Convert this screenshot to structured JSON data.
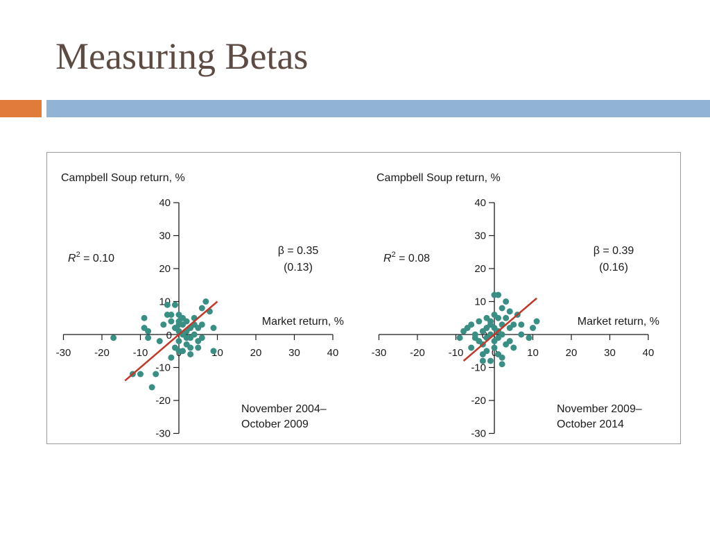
{
  "slide": {
    "title": "Measuring Betas"
  },
  "colors": {
    "title": "#5d4a42",
    "band_orange": "#e07b39",
    "band_blue": "#92b4d4",
    "points": "#3a8f85",
    "regression_line": "#c0392b",
    "axis": "#1a1a1a"
  },
  "chart_data": [
    {
      "type": "scatter",
      "ylabel": "Campbell Soup return, %",
      "xlabel": "Market return, %",
      "xlim": [
        -30,
        40
      ],
      "ylim": [
        -30,
        40
      ],
      "xticks": [
        -30,
        -20,
        -10,
        0,
        10,
        20,
        30,
        40
      ],
      "yticks": [
        -30,
        -20,
        -10,
        0,
        10,
        20,
        30,
        40
      ],
      "r2": "0.10",
      "beta": "β = 0.35",
      "beta_se": "(0.13)",
      "period": [
        "November 2004–",
        "October 2009"
      ],
      "fit_line": {
        "x": [
          -14,
          10
        ],
        "y": [
          -14,
          10
        ]
      },
      "points": [
        [
          -17,
          -1
        ],
        [
          -10,
          -12
        ],
        [
          -9,
          5
        ],
        [
          -9,
          2
        ],
        [
          -8,
          1
        ],
        [
          -7,
          -16
        ],
        [
          -6,
          -12
        ],
        [
          -5,
          -2
        ],
        [
          -4,
          3
        ],
        [
          -3,
          9
        ],
        [
          -3,
          6
        ],
        [
          -2,
          6
        ],
        [
          -2,
          4
        ],
        [
          -1,
          9
        ],
        [
          -1,
          2
        ],
        [
          -1,
          -4
        ],
        [
          0,
          6
        ],
        [
          0,
          4
        ],
        [
          0,
          3
        ],
        [
          0,
          1
        ],
        [
          0,
          -2
        ],
        [
          1,
          5
        ],
        [
          1,
          3
        ],
        [
          1,
          0
        ],
        [
          1,
          -5
        ],
        [
          2,
          4
        ],
        [
          2,
          1
        ],
        [
          2,
          -1
        ],
        [
          2,
          -3
        ],
        [
          3,
          -6
        ],
        [
          3,
          2
        ],
        [
          3,
          -1
        ],
        [
          4,
          5
        ],
        [
          4,
          3
        ],
        [
          4,
          0
        ],
        [
          5,
          2
        ],
        [
          5,
          -2
        ],
        [
          5,
          -4
        ],
        [
          6,
          3
        ],
        [
          6,
          8
        ],
        [
          7,
          10
        ],
        [
          8,
          7
        ],
        [
          9,
          2
        ],
        [
          9,
          -5
        ],
        [
          -2,
          -7
        ],
        [
          0,
          -5
        ],
        [
          -8,
          -1
        ],
        [
          -12,
          -12
        ],
        [
          3,
          -4
        ],
        [
          6,
          -1
        ]
      ]
    },
    {
      "type": "scatter",
      "ylabel": "Campbell Soup return, %",
      "xlabel": "Market return, %",
      "xlim": [
        -30,
        40
      ],
      "ylim": [
        -30,
        40
      ],
      "xticks": [
        -30,
        -20,
        -10,
        0,
        10,
        20,
        30,
        40
      ],
      "yticks": [
        -30,
        -20,
        -10,
        0,
        10,
        20,
        30,
        40
      ],
      "r2": "0.08",
      "beta": "β = 0.39",
      "beta_se": "(0.16)",
      "period": [
        "November 2009–",
        "October 2014"
      ],
      "fit_line": {
        "x": [
          -8,
          11
        ],
        "y": [
          -8,
          11
        ]
      },
      "points": [
        [
          -8,
          1
        ],
        [
          -7,
          2
        ],
        [
          -6,
          -4
        ],
        [
          -6,
          3
        ],
        [
          -5,
          0
        ],
        [
          -5,
          -1
        ],
        [
          -4,
          -2
        ],
        [
          -4,
          4
        ],
        [
          -3,
          -3
        ],
        [
          -3,
          1
        ],
        [
          -3,
          -6
        ],
        [
          -2,
          2
        ],
        [
          -2,
          -1
        ],
        [
          -2,
          -5
        ],
        [
          -2,
          5
        ],
        [
          -1,
          3
        ],
        [
          -1,
          0
        ],
        [
          -1,
          -8
        ],
        [
          -1,
          4
        ],
        [
          0,
          2
        ],
        [
          0,
          -2
        ],
        [
          0,
          12
        ],
        [
          0,
          -4
        ],
        [
          0,
          6
        ],
        [
          1,
          1
        ],
        [
          1,
          -1
        ],
        [
          1,
          5
        ],
        [
          1,
          12
        ],
        [
          1,
          -6
        ],
        [
          2,
          3
        ],
        [
          2,
          0
        ],
        [
          2,
          8
        ],
        [
          2,
          -9
        ],
        [
          2,
          -7
        ],
        [
          3,
          -3
        ],
        [
          3,
          5
        ],
        [
          3,
          10
        ],
        [
          4,
          2
        ],
        [
          4,
          -2
        ],
        [
          4,
          7
        ],
        [
          5,
          -4
        ],
        [
          5,
          3
        ],
        [
          6,
          6
        ],
        [
          7,
          0
        ],
        [
          7,
          3
        ],
        [
          9,
          -1
        ],
        [
          10,
          2
        ],
        [
          11,
          4
        ],
        [
          -9,
          -1
        ],
        [
          -3,
          -8
        ]
      ]
    }
  ]
}
